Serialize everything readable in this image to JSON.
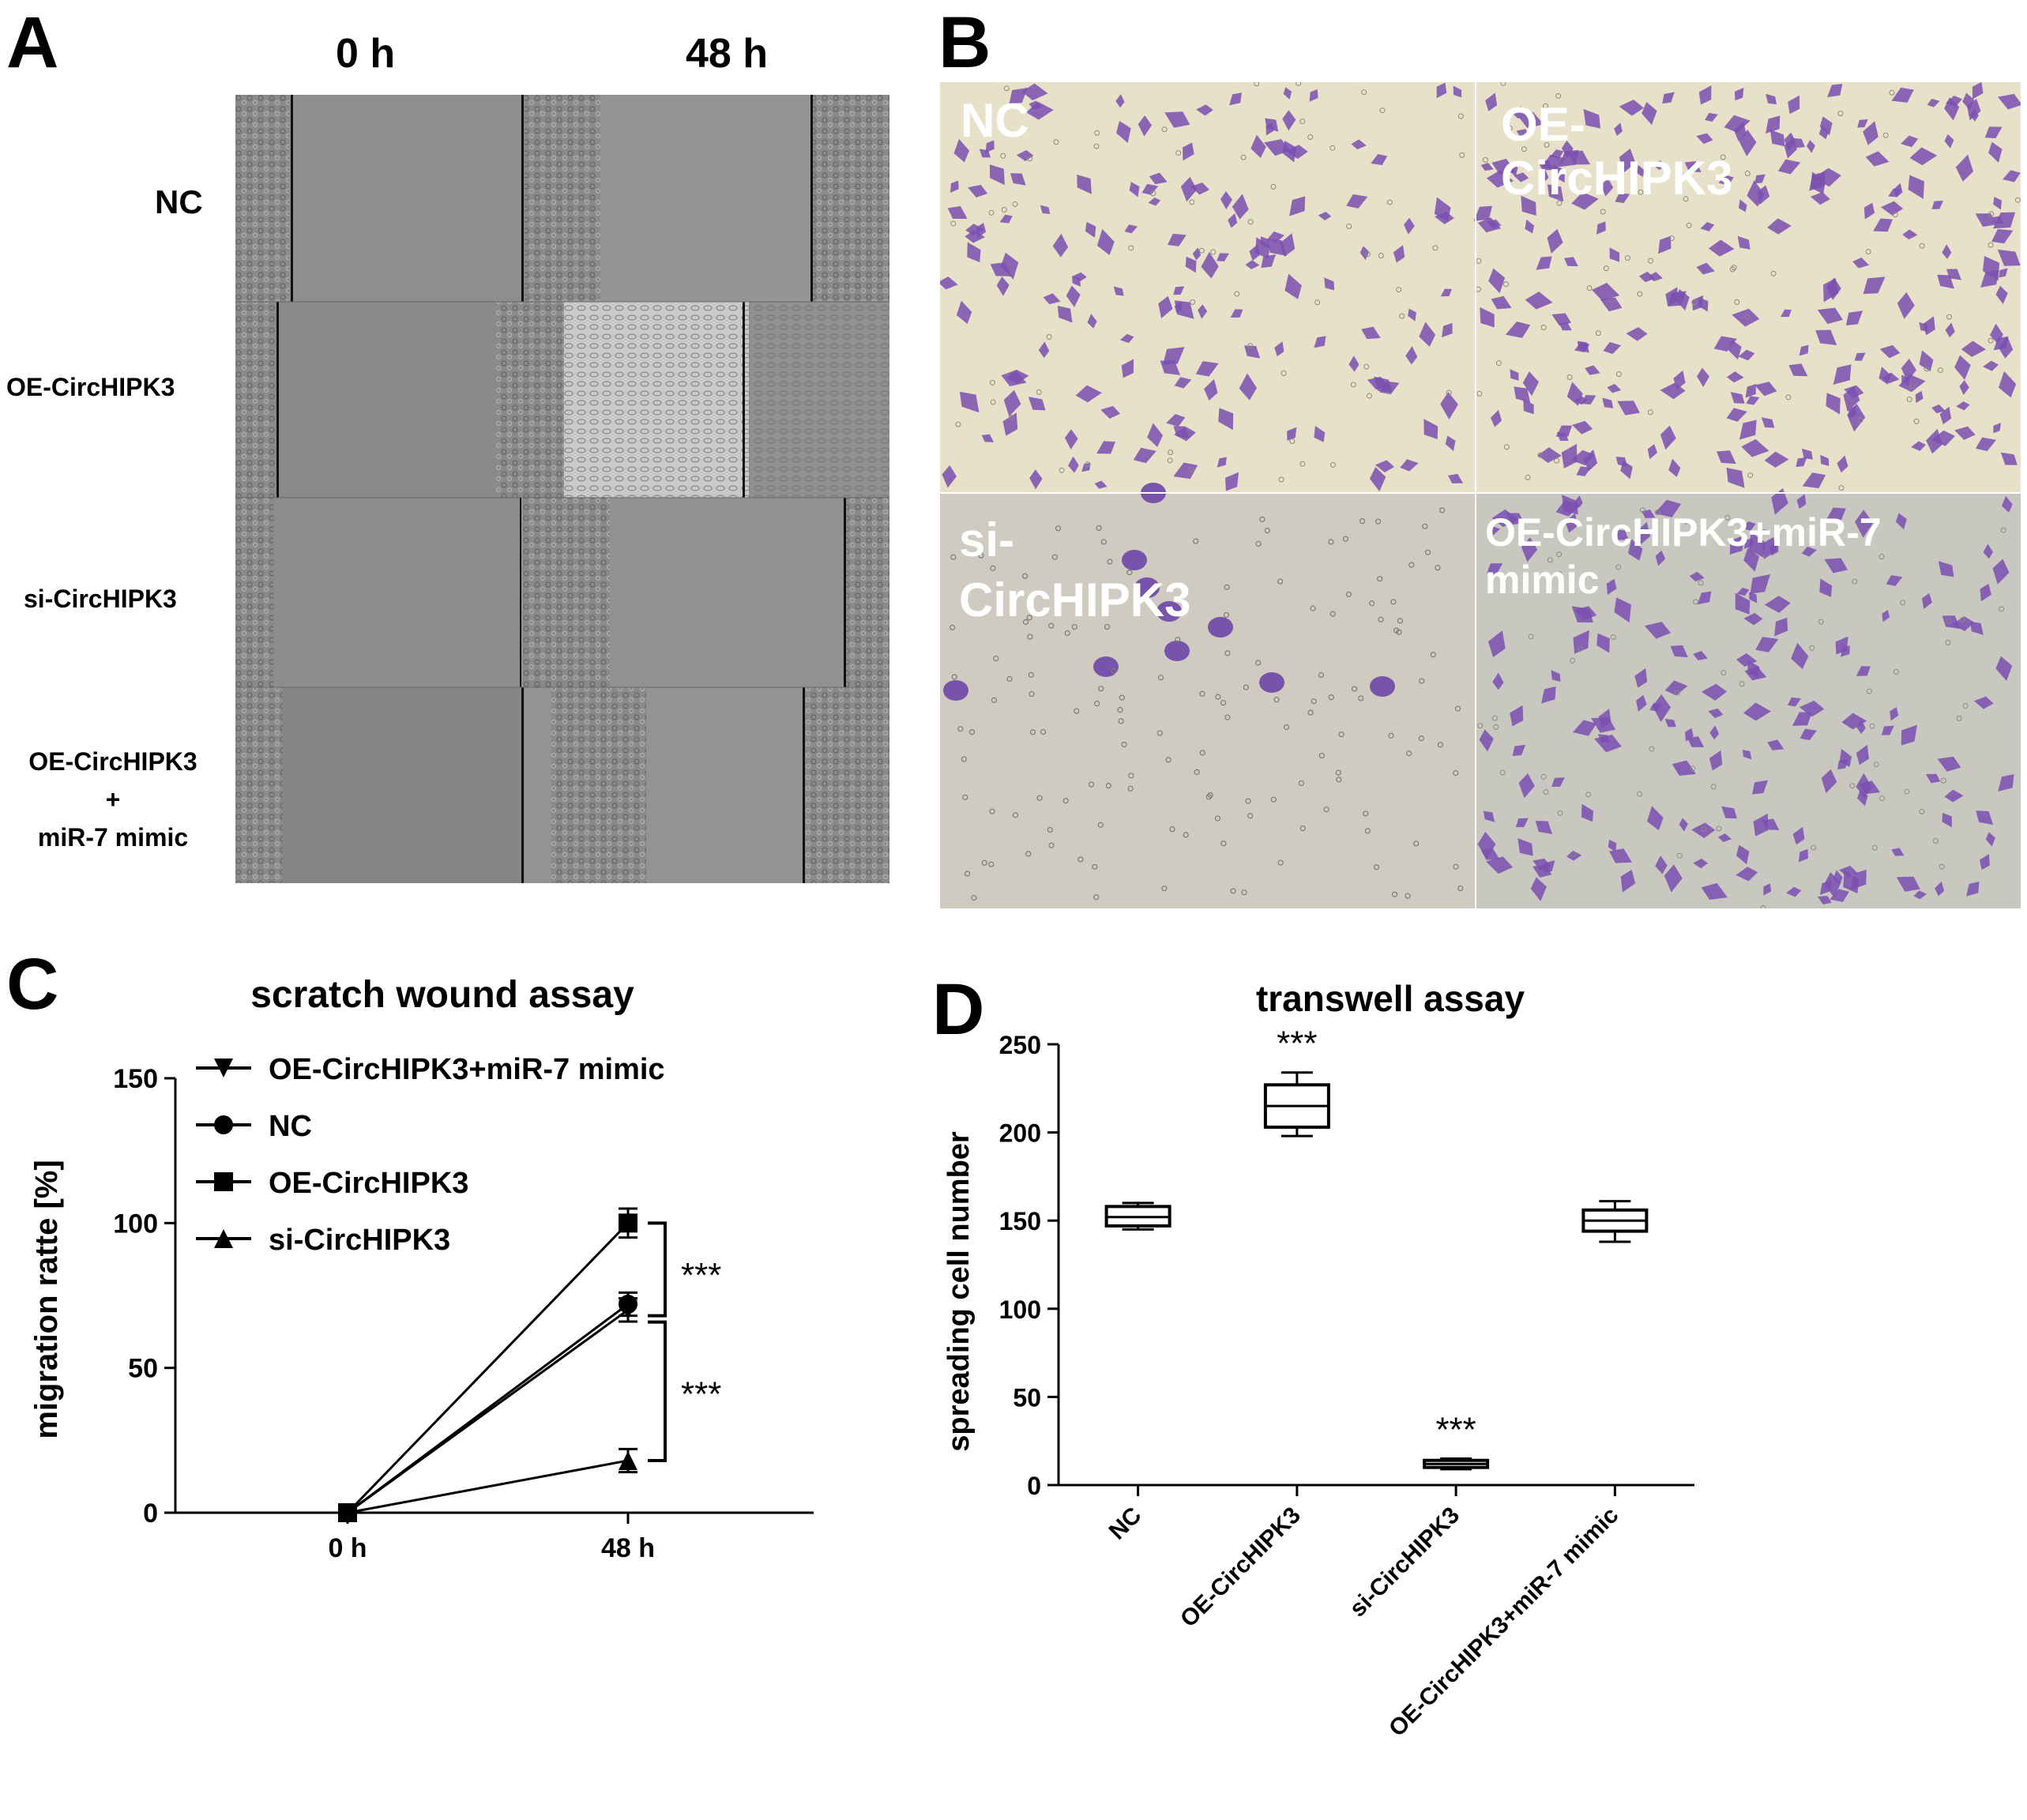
{
  "panels": {
    "a": {
      "letter": "A",
      "col_headers": [
        "0 h",
        "48 h"
      ],
      "row_labels": [
        "NC",
        "OE-CircHIPK3",
        "si-CircHIPK3",
        "OE-CircHIPK3\n+\nmiR-7 mimic"
      ]
    },
    "b": {
      "letter": "B",
      "tile_labels": [
        "NC",
        "OE-\nCircHIPK3",
        "si-\nCircHIPK3",
        "OE-CircHIPK3+miR-7\nmimic"
      ],
      "stain_color": "#7a4fb0",
      "background_color": "#e6e1c8"
    },
    "c": {
      "letter": "C"
    },
    "d": {
      "letter": "D"
    }
  },
  "chart_data": [
    {
      "type": "line",
      "title": "scratch wound assay",
      "xlabel": "",
      "ylabel": "migration ratte [%]",
      "categories": [
        "0 h",
        "48 h"
      ],
      "ylim": [
        0,
        150
      ],
      "yticks": [
        0,
        50,
        100,
        150
      ],
      "legend_position": "top-left",
      "series": [
        {
          "name": "OE-CircHIPK3+miR-7 mimic",
          "marker": "triangle-down",
          "values": [
            0,
            70
          ],
          "error": [
            0,
            4
          ]
        },
        {
          "name": "NC",
          "marker": "circle",
          "values": [
            0,
            72
          ],
          "error": [
            0,
            4
          ]
        },
        {
          "name": "OE-CircHIPK3",
          "marker": "square",
          "values": [
            0,
            100
          ],
          "error": [
            0,
            5
          ]
        },
        {
          "name": "si-CircHIPK3",
          "marker": "triangle-up",
          "values": [
            0,
            18
          ],
          "error": [
            0,
            4
          ]
        }
      ],
      "annotations": [
        "***",
        "***"
      ]
    },
    {
      "type": "box",
      "title": "transwell assay",
      "xlabel": "",
      "ylabel": "spreading cell number",
      "categories": [
        "NC",
        "OE-CircHIPK3",
        "si-CircHIPK3",
        "OE-CircHIPK3+miR-7 mimic"
      ],
      "ylim": [
        0,
        250
      ],
      "yticks": [
        0,
        50,
        100,
        150,
        200,
        250
      ],
      "boxes": [
        {
          "min": 145,
          "q1": 147,
          "median": 152,
          "q3": 158,
          "max": 160
        },
        {
          "min": 198,
          "q1": 203,
          "median": 215,
          "q3": 227,
          "max": 234
        },
        {
          "min": 9,
          "q1": 10,
          "median": 12,
          "q3": 14,
          "max": 15
        },
        {
          "min": 138,
          "q1": 144,
          "median": 150,
          "q3": 156,
          "max": 161
        }
      ],
      "annotations": [
        {
          "category": "OE-CircHIPK3",
          "text": "***"
        },
        {
          "category": "si-CircHIPK3",
          "text": "***"
        }
      ]
    }
  ]
}
